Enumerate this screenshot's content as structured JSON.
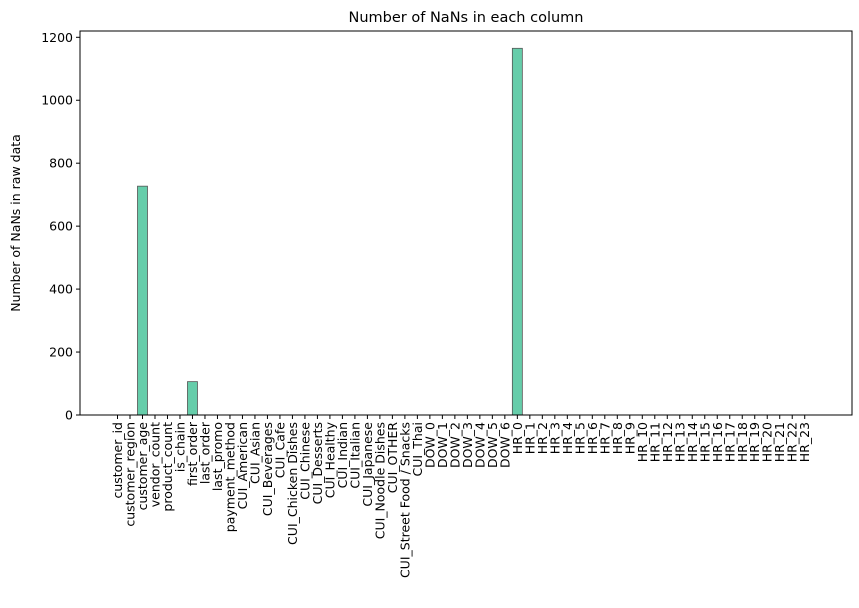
{
  "chart_data": {
    "type": "bar",
    "title": "Number of NaNs in each column",
    "xlabel": "",
    "ylabel": "Number of NaNs in raw data",
    "ylim": [
      0,
      1220
    ],
    "yticks": [
      0,
      200,
      400,
      600,
      800,
      1000,
      1200
    ],
    "grid": false,
    "bar_color": "#66cdaa",
    "bar_edge_color": "#555555",
    "categories": [
      "customer_id",
      "customer_region",
      "customer_age",
      "vendor_count",
      "product_count",
      "is_chain",
      "first_order",
      "last_order",
      "last_promo",
      "payment_method",
      "CUI_American",
      "CUI_Asian",
      "CUI_Beverages",
      "CUI_Cafe",
      "CUI_Chicken Dishes",
      "CUI_Chinese",
      "CUI_Desserts",
      "CUI_Healthy",
      "CUI_Indian",
      "CUI_Italian",
      "CUI_Japanese",
      "CUI_Noodle Dishes",
      "CUI_OTHER",
      "CUI_Street Food / Snacks",
      "CUI_Thai",
      "DOW_0",
      "DOW_1",
      "DOW_2",
      "DOW_3",
      "DOW_4",
      "DOW_5",
      "DOW_6",
      "HR_0",
      "HR_1",
      "HR_2",
      "HR_3",
      "HR_4",
      "HR_5",
      "HR_6",
      "HR_7",
      "HR_8",
      "HR_9",
      "HR_10",
      "HR_11",
      "HR_12",
      "HR_13",
      "HR_14",
      "HR_15",
      "HR_16",
      "HR_17",
      "HR_18",
      "HR_19",
      "HR_20",
      "HR_21",
      "HR_22",
      "HR_23"
    ],
    "values": [
      0,
      0,
      727,
      0,
      0,
      0,
      106,
      0,
      0,
      0,
      0,
      0,
      0,
      0,
      0,
      0,
      0,
      0,
      0,
      0,
      0,
      0,
      0,
      0,
      0,
      0,
      0,
      0,
      0,
      0,
      0,
      0,
      1165,
      0,
      0,
      0,
      0,
      0,
      0,
      0,
      0,
      0,
      0,
      0,
      0,
      0,
      0,
      0,
      0,
      0,
      0,
      0,
      0,
      0,
      0,
      0
    ]
  }
}
